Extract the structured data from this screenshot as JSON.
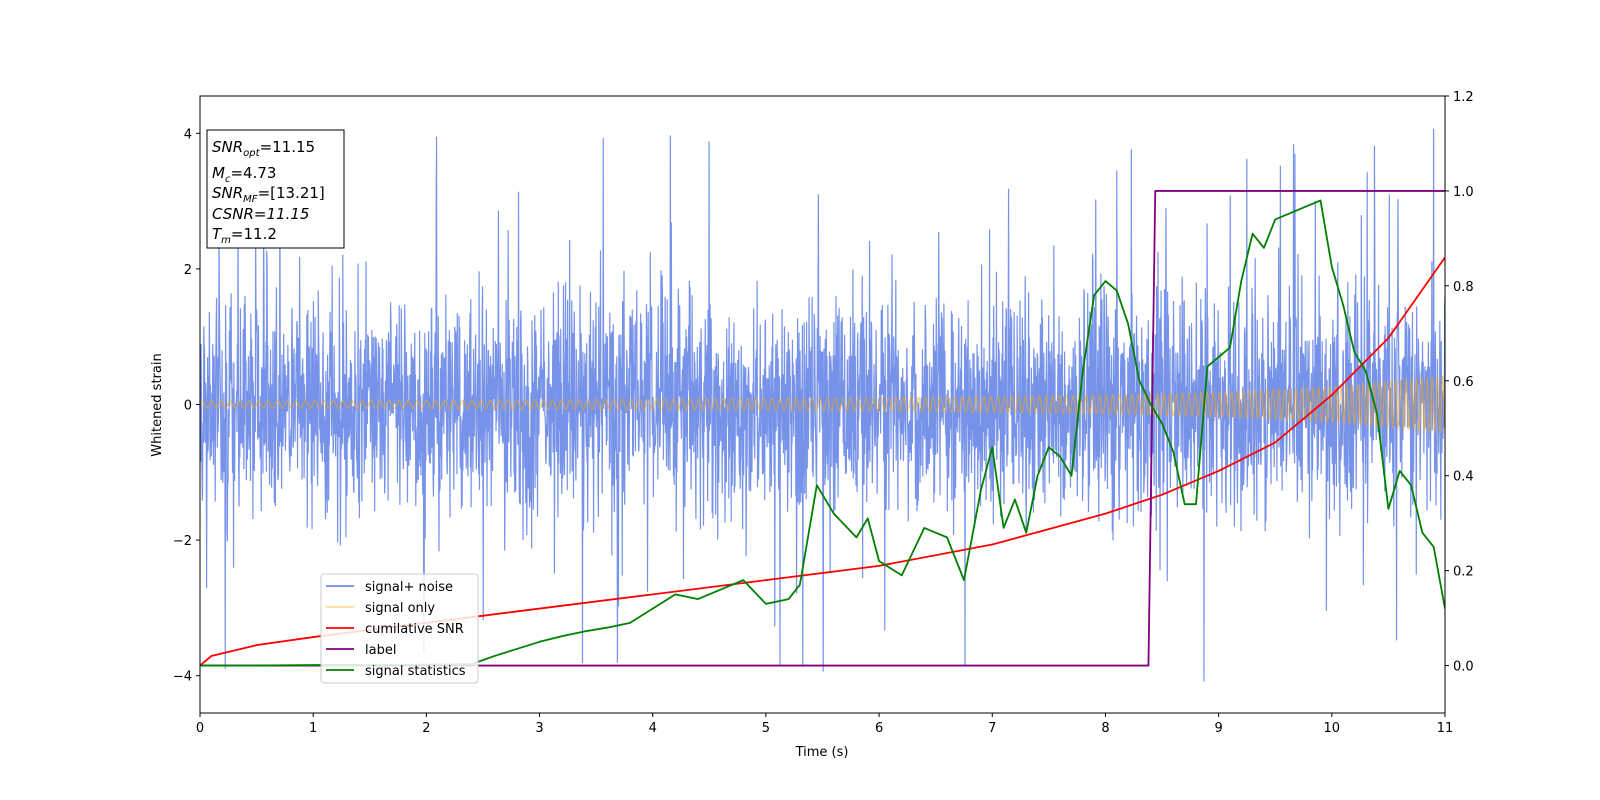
{
  "chart_data": {
    "type": "line",
    "title": "",
    "xlabel": "Time (s)",
    "ylabel": "Whitened strain",
    "xlim": [
      0,
      11
    ],
    "ylim_left": [
      -4.55,
      4.55
    ],
    "ylim_right": [
      -0.1,
      1.2
    ],
    "xticks": [
      "0",
      "1",
      "2",
      "3",
      "4",
      "5",
      "6",
      "7",
      "8",
      "9",
      "10",
      "11"
    ],
    "yticks_left": [
      "−4",
      "−2",
      "0",
      "2",
      "4"
    ],
    "yticks_right": [
      "0.0",
      "0.2",
      "0.4",
      "0.6",
      "0.8",
      "1.0",
      "1.2"
    ],
    "grid": false,
    "legend_position": "lower-left",
    "annotations": {
      "snr_opt": "=11.15",
      "mc": "=4.73",
      "snr_mf": "=[13.21]",
      "csnr": "CSNR=11.15",
      "tm": "=11.2"
    },
    "series": [
      {
        "name": "signal+ noise",
        "axis": "left",
        "color": "#4169e1",
        "style": "noise band, approx. -1.3 to 1.3 with spikes to about ±4.1",
        "typical_amplitude": 1.3,
        "max_abs": 4.1
      },
      {
        "name": "signal only",
        "axis": "left",
        "color": "#ffa500",
        "style": "chirp with growing amplitude",
        "amplitude_envelope": {
          "x": [
            0,
            2,
            4,
            6,
            8,
            9,
            10,
            11
          ],
          "y": [
            0.05,
            0.06,
            0.08,
            0.1,
            0.14,
            0.18,
            0.26,
            0.42
          ]
        }
      },
      {
        "name": "cumilative SNR",
        "axis": "right",
        "color": "#ff0000",
        "x": [
          0,
          0.1,
          0.5,
          1,
          2,
          3,
          4,
          5,
          6,
          7,
          8,
          8.5,
          9,
          9.5,
          10,
          10.5,
          11
        ],
        "y": [
          0.0,
          0.02,
          0.043,
          0.06,
          0.09,
          0.12,
          0.15,
          0.18,
          0.21,
          0.255,
          0.32,
          0.36,
          0.41,
          0.47,
          0.57,
          0.69,
          0.86
        ]
      },
      {
        "name": "label",
        "axis": "right",
        "color": "#800080",
        "x": [
          0,
          8.38,
          8.44,
          11
        ],
        "y": [
          0,
          0,
          1,
          1
        ]
      },
      {
        "name": "signal statistics",
        "axis": "right",
        "color": "#008000",
        "x": [
          0,
          0.5,
          1.0,
          1.5,
          2.0,
          2.4,
          2.6,
          2.8,
          3.0,
          3.2,
          3.4,
          3.6,
          3.8,
          4.0,
          4.2,
          4.4,
          4.6,
          4.8,
          5.0,
          5.2,
          5.3,
          5.45,
          5.6,
          5.8,
          5.9,
          6.0,
          6.2,
          6.4,
          6.5,
          6.6,
          6.75,
          6.9,
          7.0,
          7.1,
          7.2,
          7.3,
          7.4,
          7.5,
          7.6,
          7.7,
          7.8,
          7.9,
          8.0,
          8.1,
          8.2,
          8.3,
          8.4,
          8.5,
          8.6,
          8.7,
          8.8,
          8.9,
          9.0,
          9.1,
          9.2,
          9.3,
          9.4,
          9.5,
          9.6,
          9.7,
          9.8,
          9.9,
          10.0,
          10.1,
          10.2,
          10.3,
          10.4,
          10.5,
          10.6,
          10.7,
          10.8,
          10.9,
          11.0
        ],
        "y": [
          0,
          0,
          0.001,
          0.001,
          0.002,
          0.003,
          0.02,
          0.035,
          0.05,
          0.062,
          0.072,
          0.08,
          0.09,
          0.12,
          0.15,
          0.14,
          0.16,
          0.18,
          0.13,
          0.14,
          0.17,
          0.38,
          0.32,
          0.27,
          0.31,
          0.22,
          0.19,
          0.29,
          0.28,
          0.27,
          0.18,
          0.37,
          0.46,
          0.29,
          0.35,
          0.28,
          0.4,
          0.46,
          0.44,
          0.4,
          0.62,
          0.78,
          0.81,
          0.79,
          0.72,
          0.6,
          0.55,
          0.51,
          0.45,
          0.34,
          0.34,
          0.63,
          0.65,
          0.67,
          0.81,
          0.91,
          0.88,
          0.94,
          0.95,
          0.96,
          0.97,
          0.98,
          0.84,
          0.76,
          0.66,
          0.62,
          0.53,
          0.33,
          0.41,
          0.38,
          0.28,
          0.25,
          0.12
        ]
      }
    ]
  }
}
